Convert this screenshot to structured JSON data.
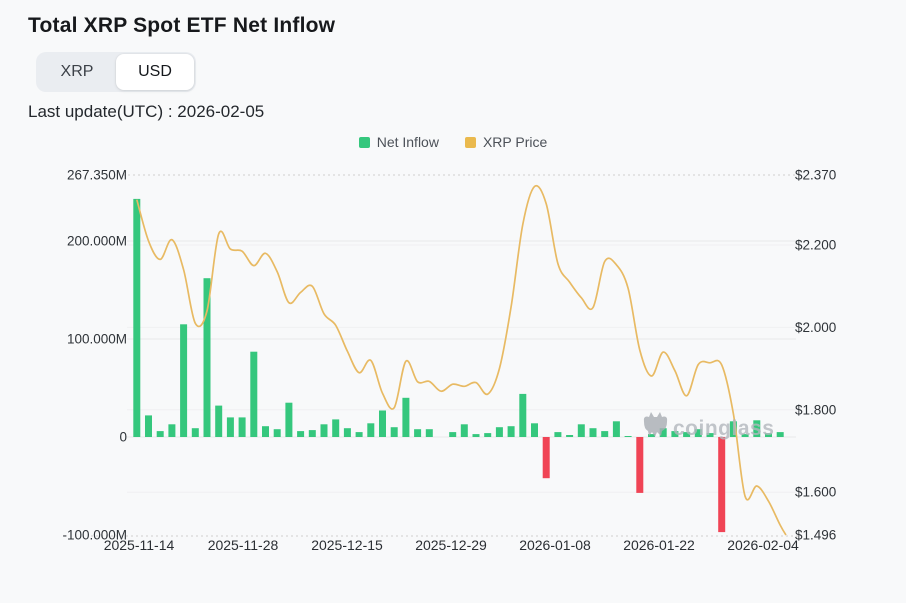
{
  "page": {
    "title": "Total XRP Spot ETF Net Inflow"
  },
  "toggle": {
    "options": [
      "XRP",
      "USD"
    ],
    "selected": "USD"
  },
  "last_update": "Last update(UTC) : 2026-02-05",
  "legend": [
    {
      "label": "Net Inflow",
      "color": "#35c77d"
    },
    {
      "label": "XRP Price",
      "color": "#eab94d"
    }
  ],
  "watermark": {
    "text": "coinglass",
    "icon": "coinglass-bat-logo",
    "color": "#a9aeb4"
  },
  "chart_data": {
    "type": "bar+line",
    "title": "Total XRP Spot ETF Net Inflow",
    "grid": "horizontal, faint; dotted top and bottom border lines",
    "legend_position": "top-center",
    "bar_color_positive": "#35c77d",
    "bar_color_negative": "#f04455",
    "line_color": "#e8ba63",
    "x_axis": {
      "labels": [
        "2025-11-14",
        "2025-11-28",
        "2025-12-15",
        "2025-12-29",
        "2026-01-08",
        "2026-01-22",
        "2026-02-04"
      ]
    },
    "left_axis": {
      "name": "Net Inflow (USD)",
      "tick_labels": [
        "267.350M",
        "200.000M",
        "100.000M",
        "0",
        "-100.000M"
      ],
      "tick_values": [
        267.35,
        200,
        100,
        0,
        -100
      ],
      "range": [
        -103,
        267.35
      ]
    },
    "right_axis": {
      "name": "XRP Price (USD)",
      "tick_labels": [
        "$2.370",
        "$2.200",
        "$2.000",
        "$1.800",
        "$1.600",
        "$1.496"
      ],
      "tick_values": [
        2.37,
        2.2,
        2.0,
        1.8,
        1.6,
        1.496
      ],
      "range": [
        1.496,
        2.37
      ]
    },
    "bars": {
      "name": "Net Inflow",
      "unit": "USD millions",
      "values": [
        243,
        22,
        6,
        13,
        115,
        9,
        162,
        32,
        20,
        20,
        87,
        11,
        8,
        35,
        6,
        7,
        13,
        18,
        9,
        5,
        14,
        27,
        10,
        40,
        8,
        8,
        0,
        5,
        13,
        3,
        4,
        10,
        11,
        44,
        14,
        -42,
        5,
        2,
        13,
        9,
        6,
        16,
        1,
        -57,
        3,
        9,
        6,
        5,
        8,
        4,
        -97,
        16,
        3,
        17,
        4,
        5
      ]
    },
    "line": {
      "name": "XRP Price",
      "unit": "USD",
      "values": [
        2.31,
        2.21,
        2.165,
        2.213,
        2.14,
        2.01,
        2.04,
        2.227,
        2.19,
        2.185,
        2.15,
        2.18,
        2.135,
        2.06,
        2.085,
        2.1,
        2.033,
        2.005,
        1.942,
        1.89,
        1.92,
        1.84,
        1.805,
        1.918,
        1.868,
        1.869,
        1.845,
        1.862,
        1.857,
        1.866,
        1.838,
        1.9,
        2.05,
        2.25,
        2.342,
        2.3,
        2.155,
        2.11,
        2.072,
        2.048,
        2.16,
        2.152,
        2.095,
        1.945,
        1.882,
        1.94,
        1.895,
        1.834,
        1.91,
        1.914,
        1.909,
        1.79,
        1.59,
        1.615,
        1.578,
        1.52
      ],
      "end_value": 1.496
    }
  }
}
